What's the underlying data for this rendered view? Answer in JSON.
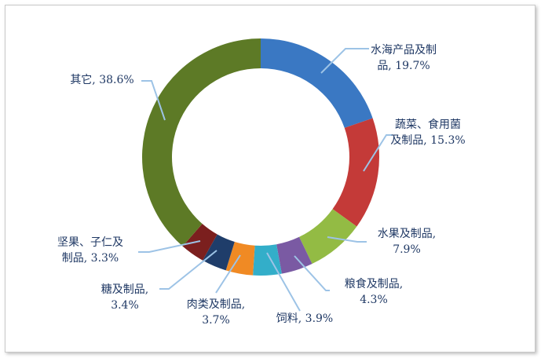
{
  "chart_data": {
    "type": "pie",
    "donut": true,
    "title": "",
    "legend": "none",
    "slices": [
      {
        "label_lines": [
          "水海产品及制",
          "品, 19.7%"
        ],
        "category": "水海产品及制品",
        "value": 19.7,
        "color": "#3a78c3"
      },
      {
        "label_lines": [
          "蔬菜、食用菌",
          "及制品, 15.3%"
        ],
        "category": "蔬菜、食用菌及制品",
        "value": 15.3,
        "color": "#c43a38"
      },
      {
        "label_lines": [
          "水果及制品,",
          "7.9%"
        ],
        "category": "水果及制品",
        "value": 7.9,
        "color": "#93bb44"
      },
      {
        "label_lines": [
          "粮食及制品,",
          "4.3%"
        ],
        "category": "粮食及制品",
        "value": 4.3,
        "color": "#7a5aa3"
      },
      {
        "label_lines": [
          "饲料, 3.9%"
        ],
        "category": "饲料",
        "value": 3.9,
        "color": "#33aec9"
      },
      {
        "label_lines": [
          "肉类及制品,",
          "3.7%"
        ],
        "category": "肉类及制品",
        "value": 3.7,
        "color": "#f08a24"
      },
      {
        "label_lines": [
          "糖及制品,",
          "3.4%"
        ],
        "category": "糖及制品",
        "value": 3.4,
        "color": "#1f3d6a"
      },
      {
        "label_lines": [
          "坚果、子仁及",
          "制品, 3.3%"
        ],
        "category": "坚果、子仁及制品",
        "value": 3.3,
        "color": "#7b1f1e"
      },
      {
        "label_lines": [
          "其它, 38.6%"
        ],
        "category": "其它",
        "value": 38.6,
        "color": "#5d7a26"
      }
    ]
  }
}
